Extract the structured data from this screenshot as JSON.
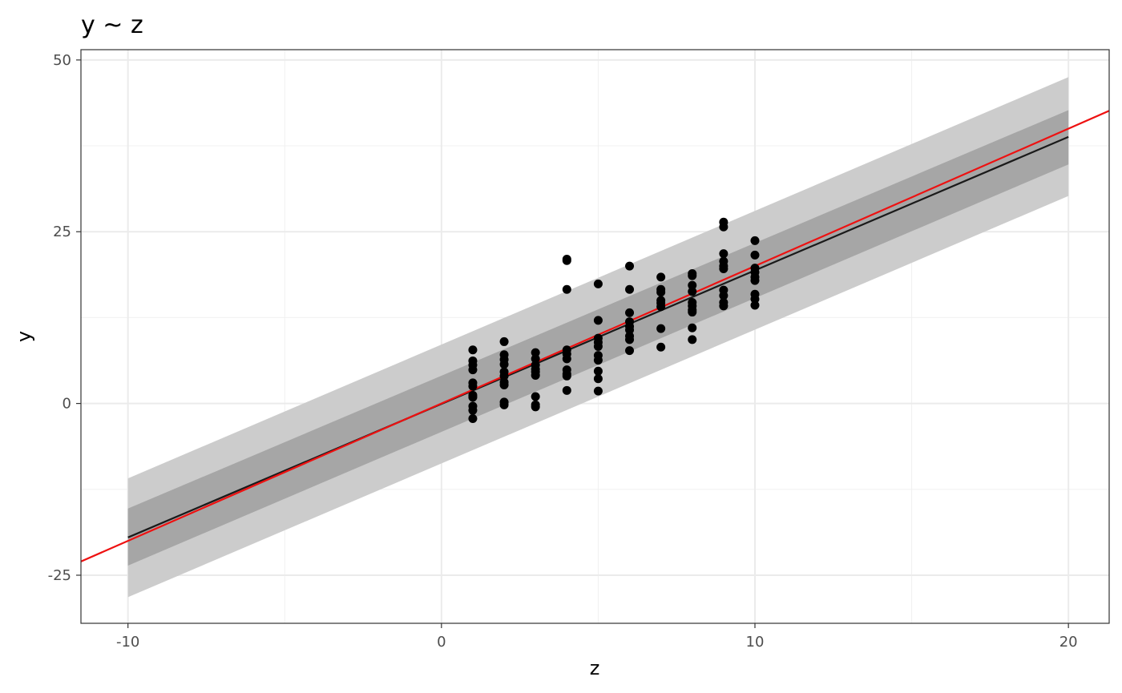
{
  "chart_data": {
    "type": "scatter",
    "title": "y ~ z",
    "xlabel": "z",
    "ylabel": "y",
    "xlim": [
      -11.5,
      21.3
    ],
    "ylim": [
      -32,
      51.5
    ],
    "x_ticks": [
      -10,
      0,
      10,
      20
    ],
    "x_tick_labels": [
      "-10",
      "0",
      "10",
      "20"
    ],
    "y_ticks": [
      -25,
      0,
      25,
      50
    ],
    "y_tick_labels": [
      "-25",
      "0",
      "25",
      "50"
    ],
    "grid": true,
    "legend": "none",
    "points": [
      {
        "x": 1,
        "y": 7.8
      },
      {
        "x": 1,
        "y": 6.2
      },
      {
        "x": 1,
        "y": 5.6
      },
      {
        "x": 1,
        "y": 4.9
      },
      {
        "x": 1,
        "y": 3.0
      },
      {
        "x": 1,
        "y": 2.5
      },
      {
        "x": 1,
        "y": 1.2
      },
      {
        "x": 1,
        "y": 0.9
      },
      {
        "x": 1,
        "y": -0.4
      },
      {
        "x": 1,
        "y": -1.0
      },
      {
        "x": 1,
        "y": -2.2
      },
      {
        "x": 2,
        "y": 9.0
      },
      {
        "x": 2,
        "y": 7.1
      },
      {
        "x": 2,
        "y": 6.4
      },
      {
        "x": 2,
        "y": 5.7
      },
      {
        "x": 2,
        "y": 4.6
      },
      {
        "x": 2,
        "y": 4.0
      },
      {
        "x": 2,
        "y": 3.1
      },
      {
        "x": 2,
        "y": 2.7
      },
      {
        "x": 2,
        "y": 0.2
      },
      {
        "x": 2,
        "y": -0.2
      },
      {
        "x": 3,
        "y": 7.4
      },
      {
        "x": 3,
        "y": 6.5
      },
      {
        "x": 3,
        "y": 5.6
      },
      {
        "x": 3,
        "y": 5.0
      },
      {
        "x": 3,
        "y": 4.6
      },
      {
        "x": 3,
        "y": 4.1
      },
      {
        "x": 3,
        "y": 1.0
      },
      {
        "x": 3,
        "y": -0.2
      },
      {
        "x": 3,
        "y": -0.5
      },
      {
        "x": 4,
        "y": 21.0
      },
      {
        "x": 4,
        "y": 20.8
      },
      {
        "x": 4,
        "y": 16.6
      },
      {
        "x": 4,
        "y": 7.8
      },
      {
        "x": 4,
        "y": 7.2
      },
      {
        "x": 4,
        "y": 6.5
      },
      {
        "x": 4,
        "y": 4.9
      },
      {
        "x": 4,
        "y": 4.3
      },
      {
        "x": 4,
        "y": 4.0
      },
      {
        "x": 4,
        "y": 1.9
      },
      {
        "x": 5,
        "y": 17.4
      },
      {
        "x": 5,
        "y": 12.1
      },
      {
        "x": 5,
        "y": 9.5
      },
      {
        "x": 5,
        "y": 8.9
      },
      {
        "x": 5,
        "y": 8.3
      },
      {
        "x": 5,
        "y": 7.0
      },
      {
        "x": 5,
        "y": 6.3
      },
      {
        "x": 5,
        "y": 4.7
      },
      {
        "x": 5,
        "y": 3.6
      },
      {
        "x": 5,
        "y": 1.8
      },
      {
        "x": 6,
        "y": 20.0
      },
      {
        "x": 6,
        "y": 16.6
      },
      {
        "x": 6,
        "y": 13.2
      },
      {
        "x": 6,
        "y": 11.9
      },
      {
        "x": 6,
        "y": 11.2
      },
      {
        "x": 6,
        "y": 10.7
      },
      {
        "x": 6,
        "y": 9.8
      },
      {
        "x": 6,
        "y": 9.3
      },
      {
        "x": 6,
        "y": 7.7
      },
      {
        "x": 7,
        "y": 18.4
      },
      {
        "x": 7,
        "y": 16.6
      },
      {
        "x": 7,
        "y": 16.2
      },
      {
        "x": 7,
        "y": 15.0
      },
      {
        "x": 7,
        "y": 14.6
      },
      {
        "x": 7,
        "y": 14.1
      },
      {
        "x": 7,
        "y": 10.9
      },
      {
        "x": 7,
        "y": 8.2
      },
      {
        "x": 8,
        "y": 18.9
      },
      {
        "x": 8,
        "y": 18.6
      },
      {
        "x": 8,
        "y": 17.2
      },
      {
        "x": 8,
        "y": 16.3
      },
      {
        "x": 8,
        "y": 14.7
      },
      {
        "x": 8,
        "y": 14.2
      },
      {
        "x": 8,
        "y": 13.6
      },
      {
        "x": 8,
        "y": 13.3
      },
      {
        "x": 8,
        "y": 11.0
      },
      {
        "x": 8,
        "y": 9.3
      },
      {
        "x": 9,
        "y": 26.4
      },
      {
        "x": 9,
        "y": 25.7
      },
      {
        "x": 9,
        "y": 21.8
      },
      {
        "x": 9,
        "y": 20.7
      },
      {
        "x": 9,
        "y": 20.0
      },
      {
        "x": 9,
        "y": 19.6
      },
      {
        "x": 9,
        "y": 16.5
      },
      {
        "x": 9,
        "y": 15.7
      },
      {
        "x": 9,
        "y": 14.7
      },
      {
        "x": 9,
        "y": 14.2
      },
      {
        "x": 10,
        "y": 23.7
      },
      {
        "x": 10,
        "y": 21.6
      },
      {
        "x": 10,
        "y": 19.7
      },
      {
        "x": 10,
        "y": 19.1
      },
      {
        "x": 10,
        "y": 18.4
      },
      {
        "x": 10,
        "y": 17.9
      },
      {
        "x": 10,
        "y": 15.9
      },
      {
        "x": 10,
        "y": 15.2
      },
      {
        "x": 10,
        "y": 14.3
      }
    ],
    "fit_line": {
      "color": "#1a1a1a",
      "x": [
        -10,
        20
      ],
      "y": [
        -19.5,
        38.8
      ]
    },
    "confidence_band": {
      "color": "#a6a6a6",
      "x": [
        -10,
        20
      ],
      "lower": [
        -23.6,
        34.8
      ],
      "upper": [
        -15.3,
        42.7
      ]
    },
    "prediction_band": {
      "color": "#cccccc",
      "x": [
        -10,
        20
      ],
      "lower": [
        -28.2,
        30.2
      ],
      "upper": [
        -10.9,
        47.5
      ]
    },
    "reference_line": {
      "color": "#ee1111",
      "intercept": 0,
      "slope": 2
    }
  }
}
